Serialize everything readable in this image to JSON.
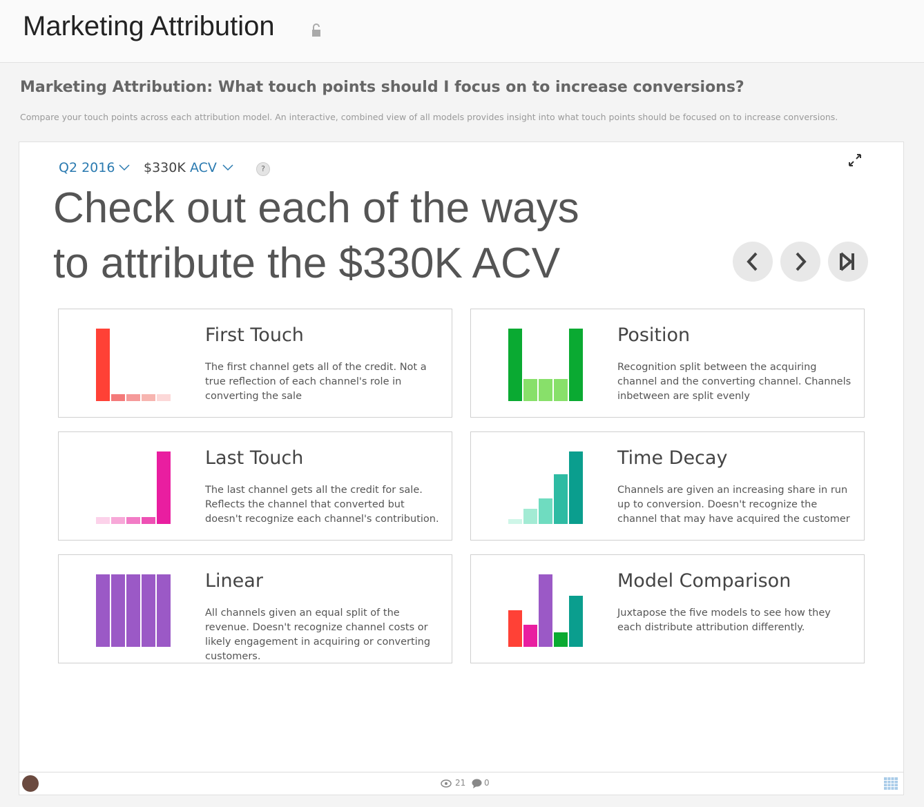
{
  "header": {
    "title": "Marketing Attribution"
  },
  "question": {
    "title": "Marketing Attribution: What touch points should I focus on to increase conversions?",
    "description": "Compare your touch points across each attribution model. An interactive, combined view of all models provides insight into what touch points should be focused on to increase conversions."
  },
  "filters": {
    "period": "Q2 2016",
    "amount": "$330K",
    "metric": "ACV",
    "help": "?"
  },
  "headline": {
    "lines": [
      "Check out each of the ways",
      "to attribute the $330K ACV"
    ]
  },
  "cards": [
    {
      "title": "First Touch",
      "description": "The first channel gets all of the credit. Not a true reflection of each channel's role in converting the sale"
    },
    {
      "title": "Position",
      "description": "Recognition split between the acquiring channel and the converting channel. Channels inbetween are split evenly"
    },
    {
      "title": "Last Touch",
      "description": "The last channel gets all the credit for sale. Reflects the channel that converted but doesn't recognize each channel's contribution."
    },
    {
      "title": "Time Decay",
      "description": "Channels are given an increasing share in run up to conversion. Doesn't recognize the channel that may have acquired the customer"
    },
    {
      "title": "Linear",
      "description": "All channels given an equal split of the revenue. Doesn't recognize channel costs or likely engagement in acquiring or converting customers."
    },
    {
      "title": "Model Comparison",
      "description": "Juxtapose the five models to see how they each distribute attribution differently."
    }
  ],
  "footer": {
    "views": 21,
    "comments": 0
  }
}
